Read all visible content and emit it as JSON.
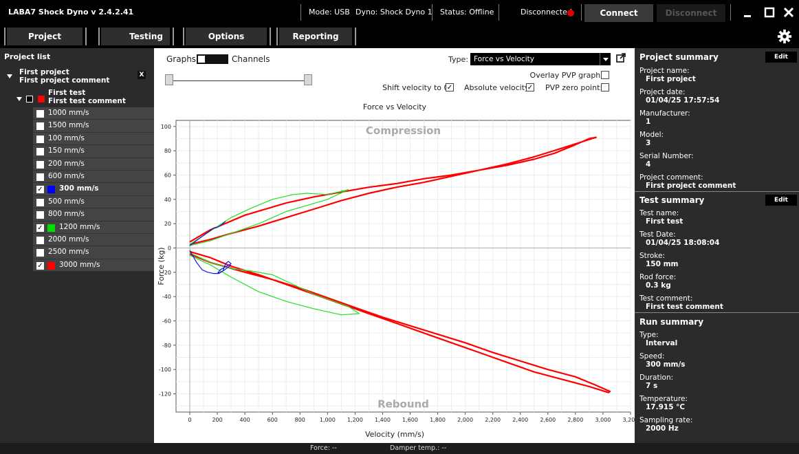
{
  "titlebar": {
    "app_title": "LABA7 Shock Dyno v 2.4.2.41",
    "mode": "Mode: USB",
    "dyno": "Dyno: Shock Dyno 1",
    "status": "Status: Offline",
    "connection": "Disconnected",
    "connect_label": "Connect",
    "disconnect_label": "Disconnect",
    "status_color": "#e00000"
  },
  "menu": {
    "items": [
      "Project",
      "Testing",
      "Options",
      "Reporting"
    ],
    "settings_icon": "gear-icon"
  },
  "project_list": {
    "title": "Project list",
    "project_name": "First project",
    "project_comment": "First project comment",
    "remove_label": "X",
    "test_name": "First test",
    "test_comment": "First test comment",
    "test_color": "#ff0000",
    "runs": [
      {
        "label": "1000 mm/s",
        "checked": false,
        "color": ""
      },
      {
        "label": "1500 mm/s",
        "checked": false,
        "color": ""
      },
      {
        "label": "100 mm/s",
        "checked": false,
        "color": ""
      },
      {
        "label": "150 mm/s",
        "checked": false,
        "color": ""
      },
      {
        "label": "200 mm/s",
        "checked": false,
        "color": ""
      },
      {
        "label": "600 mm/s",
        "checked": false,
        "color": ""
      },
      {
        "label": "300 mm/s",
        "checked": true,
        "color": "#0000ff",
        "bold": true
      },
      {
        "label": "500 mm/s",
        "checked": false,
        "color": ""
      },
      {
        "label": "800 mm/s",
        "checked": false,
        "color": ""
      },
      {
        "label": "1200 mm/s",
        "checked": true,
        "color": "#00dd00"
      },
      {
        "label": "2000 mm/s",
        "checked": false,
        "color": ""
      },
      {
        "label": "2500 mm/s",
        "checked": false,
        "color": ""
      },
      {
        "label": "3000 mm/s",
        "checked": true,
        "color": "#ff0000"
      }
    ]
  },
  "graph_controls": {
    "graphs_label": "Graphs",
    "channels_label": "Channels",
    "type_label": "Type:",
    "type_value": "Force vs Velocity",
    "overlay_label": "Overlay PVP graph:",
    "shift_label": "Shift velocity to 0:",
    "absolute_label": "Absolute velocity:",
    "pvp_zero_label": "PVP zero point:",
    "overlay_checked": false,
    "shift_checked": true,
    "absolute_checked": true,
    "pvp_zero_checked": false,
    "check_mark": "✓"
  },
  "chart_data": {
    "type": "line",
    "title": "Force vs Velocity",
    "xlabel": "Velocity (mm/s)",
    "ylabel": "Force (kg)",
    "xlim": [
      -100,
      3200
    ],
    "ylim": [
      -135,
      105
    ],
    "xticks": [
      0,
      200,
      400,
      600,
      800,
      1000,
      1200,
      1400,
      1600,
      1800,
      2000,
      2200,
      2400,
      2600,
      2800,
      3000,
      3200
    ],
    "xtick_labels": [
      "0",
      "200",
      "400",
      "600",
      "800",
      "1,000",
      "1,200",
      "1,400",
      "1,600",
      "1,800",
      "2,000",
      "2,200",
      "2,400",
      "2,600",
      "2,800",
      "3,000",
      "3,200"
    ],
    "yticks": [
      100,
      80,
      60,
      40,
      20,
      0,
      -20,
      -40,
      -60,
      -80,
      -100,
      -120
    ],
    "annotations": [
      {
        "text": "Compression",
        "x": 1550,
        "y": 97
      },
      {
        "text": "Rebound",
        "x": 1550,
        "y": -128
      }
    ],
    "grid": true,
    "series": [
      {
        "color": "#ff0000",
        "loops": [
          {
            "x": [
              0,
              150,
              400,
              700,
              900,
              1100,
              1300,
              1500,
              1700,
              1900,
              2100,
              2300,
              2500,
              2650,
              2800,
              2900,
              2950,
              2920,
              2700,
              2500,
              2300,
              2100,
              1900,
              1700,
              1500,
              1300,
              1100,
              900,
              700,
              500,
              300,
              150,
              0
            ],
            "y": [
              5,
              15,
              27,
              37,
              42,
              46,
              50,
              53,
              57,
              60,
              64,
              68,
              73,
              78,
              85,
              90,
              91,
              90,
              82,
              75,
              69,
              64,
              59,
              54,
              50,
              45,
              39,
              32,
              25,
              18,
              12,
              7,
              3
            ]
          },
          {
            "x": [
              0,
              150,
              400,
              600,
              800,
              1000,
              1200,
              1400,
              1600,
              1800,
              2000,
              2200,
              2400,
              2600,
              2800,
              2950,
              3050,
              3040,
              2900,
              2700,
              2500,
              2300,
              2100,
              1900,
              1700,
              1500,
              1300,
              1100,
              900,
              700,
              500,
              300,
              150,
              0
            ],
            "y": [
              -5,
              -12,
              -20,
              -26,
              -33,
              -41,
              -49,
              -57,
              -64,
              -71,
              -78,
              -86,
              -93,
              -100,
              -106,
              -113,
              -118,
              -119,
              -114,
              -108,
              -102,
              -94,
              -86,
              -78,
              -70,
              -62,
              -54,
              -46,
              -38,
              -30,
              -22,
              -15,
              -8,
              -3
            ]
          }
        ]
      },
      {
        "color": "#22dd22",
        "loops": [
          {
            "x": [
              0,
              150,
              300,
              450,
              600,
              750,
              850,
              1000,
              1150,
              1000,
              850,
              700,
              500,
              300,
              150,
              0
            ],
            "y": [
              3,
              14,
              25,
              33,
              40,
              44,
              45,
              44,
              48,
              40,
              35,
              30,
              20,
              12,
              6,
              2
            ]
          },
          {
            "x": [
              0,
              150,
              300,
              450,
              600,
              750,
              900,
              1050,
              1150,
              1230,
              1100,
              900,
              700,
              500,
              300,
              150,
              0
            ],
            "y": [
              -4,
              -12,
              -17,
              -19,
              -22,
              -30,
              -38,
              -44,
              -48,
              -54,
              -55,
              -50,
              -44,
              -36,
              -24,
              -14,
              -6
            ]
          }
        ]
      },
      {
        "color": "#1a1adf",
        "loops": [
          {
            "x": [
              0,
              60,
              120,
              170,
              200,
              230,
              260
            ],
            "y": [
              2,
              7,
              12,
              16,
              17,
              19,
              22
            ]
          },
          {
            "x": [
              0,
              20,
              50,
              90,
              130,
              170,
              210,
              240,
              260,
              280,
              300,
              250,
              220,
              200,
              240,
              300
            ],
            "y": [
              -2,
              -6,
              -12,
              -18,
              -20,
              -21,
              -21,
              -19,
              -13,
              -11,
              -13,
              -16,
              -18,
              -21,
              -19,
              -14
            ]
          }
        ]
      }
    ]
  },
  "project_summary": {
    "title": "Project summary",
    "edit_label": "Edit",
    "fields": [
      {
        "label": "Project name:",
        "value": "First project"
      },
      {
        "label": "Project date:",
        "value": "01/04/25 17:57:54"
      },
      {
        "label": "Manufacturer:",
        "value": "1"
      },
      {
        "label": "Model:",
        "value": "3"
      },
      {
        "label": "Serial Number:",
        "value": "4"
      },
      {
        "label": "Project comment:",
        "value": "First project comment"
      }
    ]
  },
  "test_summary": {
    "title": "Test summary",
    "edit_label": "Edit",
    "fields": [
      {
        "label": "Test name:",
        "value": "First test"
      },
      {
        "label": "Test Date:",
        "value": "01/04/25 18:08:04"
      },
      {
        "label": "Stroke:",
        "value": "150 mm"
      },
      {
        "label": "Rod force:",
        "value": "0.3 kg"
      },
      {
        "label": "Test comment:",
        "value": "First test comment"
      }
    ]
  },
  "run_summary": {
    "title": "Run summary",
    "fields": [
      {
        "label": "Type:",
        "value": "Interval"
      },
      {
        "label": "Speed:",
        "value": "300 mm/s"
      },
      {
        "label": "Duration:",
        "value": "7 s"
      },
      {
        "label": "Temperature:",
        "value": "17.915 °C"
      },
      {
        "label": "Sampling rate:",
        "value": "2000 Hz"
      }
    ]
  },
  "statusbar": {
    "force": "Force:  --",
    "damper_temp": "Damper temp.:  --"
  }
}
